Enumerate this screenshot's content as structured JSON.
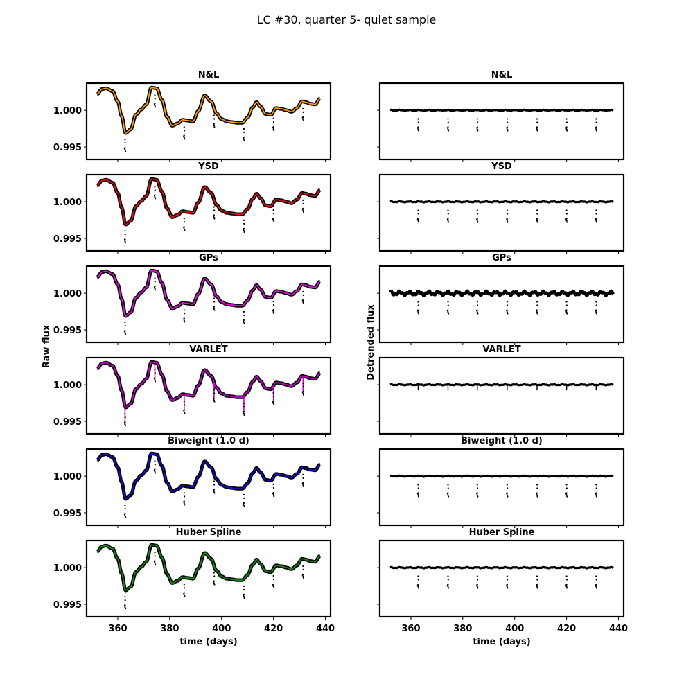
{
  "chart_data": {
    "type": "scatter",
    "title": "LC #30, quarter 5- quiet sample",
    "xlabel": "time (days)",
    "xlim": [
      348,
      442
    ],
    "x_ticks": [
      "360",
      "380",
      "400",
      "420",
      "440"
    ],
    "x_tick_values": [
      360,
      380,
      400,
      420,
      440
    ],
    "left_column": {
      "ylabel": "Raw flux",
      "ylim": [
        0.9933,
        1.0037
      ],
      "y_ticks": [
        "1.000",
        "0.995"
      ],
      "y_tick_values": [
        1.0,
        0.995
      ]
    },
    "right_column": {
      "ylabel": "Detrended flux",
      "ylim": [
        0.9933,
        1.0037
      ]
    },
    "raw_curve": {
      "x": [
        352,
        354,
        355.5,
        358,
        360,
        361.5,
        363,
        365,
        367,
        369,
        371,
        373,
        375,
        377,
        379,
        381,
        383,
        385,
        387,
        389,
        391,
        393.5,
        396,
        398,
        400,
        402,
        404,
        406,
        408,
        410,
        412,
        413.5,
        415,
        417,
        419,
        421,
        423,
        425,
        427,
        429,
        431,
        432.5,
        434,
        436,
        438
      ],
      "y": [
        1.0022,
        1.0029,
        1.003,
        1.0026,
        1.0012,
        0.9992,
        0.9969,
        0.9974,
        0.9994,
        1.0001,
        1.0008,
        1.0031,
        1.003,
        1.0014,
        0.9991,
        0.9979,
        0.9982,
        0.9987,
        0.9986,
        0.9985,
        0.9999,
        1.002,
        1.0012,
        0.9996,
        0.9988,
        0.9985,
        0.9984,
        0.9983,
        0.9983,
        0.999,
        1.0004,
        1.0011,
        1.0005,
        0.9995,
        0.9994,
        1.0003,
        1.0002,
        1.0,
        0.9998,
        1.0003,
        1.0012,
        1.0011,
        1.0009,
        1.0008,
        1.0016
      ]
    },
    "transit_times": [
      362.8,
      374.3,
      385.6,
      397.1,
      408.6,
      420.0,
      431.4
    ],
    "raw_transit_depth": 0.0022,
    "detrended_transit_depth": 0.0024,
    "panels": [
      {
        "name": "N&L",
        "color": "#ff9900",
        "detrended_wiggle": 5e-05,
        "method_depth": 0.0
      },
      {
        "name": "YSD",
        "color": "#dd1111",
        "detrended_wiggle": 5e-05,
        "method_depth": 0.0
      },
      {
        "name": "GPs",
        "color": "#dd11dd",
        "detrended_wiggle": 0.0002,
        "method_depth": 0.0
      },
      {
        "name": "VARLET",
        "color": "#cc00cc",
        "detrended_wiggle": 5e-05,
        "method_depth": 1.0
      },
      {
        "name": "Biweight (1.0 d)",
        "color": "#1111cc",
        "detrended_wiggle": 5e-05,
        "method_depth": 0.0
      },
      {
        "name": "Huber Spline",
        "color": "#118811",
        "detrended_wiggle": 5e-05,
        "method_depth": 0.0
      }
    ]
  }
}
